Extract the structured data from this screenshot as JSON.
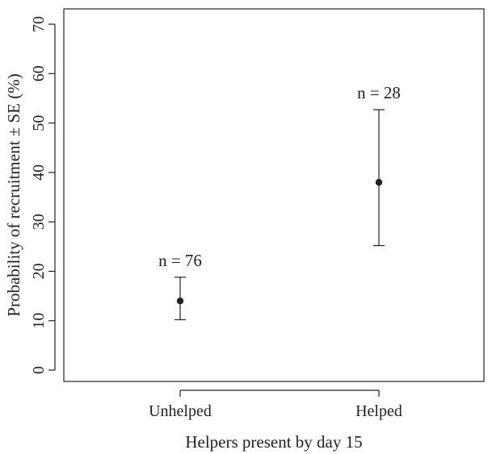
{
  "chart_data": {
    "type": "scatter",
    "xlabel": "Helpers present by day 15",
    "ylabel": "Probability of recruitment ± SE (%)",
    "categories": [
      "Unhelped",
      "Helped"
    ],
    "values": [
      14,
      38
    ],
    "error_low": [
      10.2,
      25.2
    ],
    "error_high": [
      18.8,
      52.7
    ],
    "annotations": [
      "n = 76",
      "n = 28"
    ],
    "ylim": [
      0,
      70
    ],
    "yticks": [
      0,
      10,
      20,
      30,
      40,
      50,
      60,
      70
    ],
    "grid": false,
    "marker_color": "#222222"
  }
}
